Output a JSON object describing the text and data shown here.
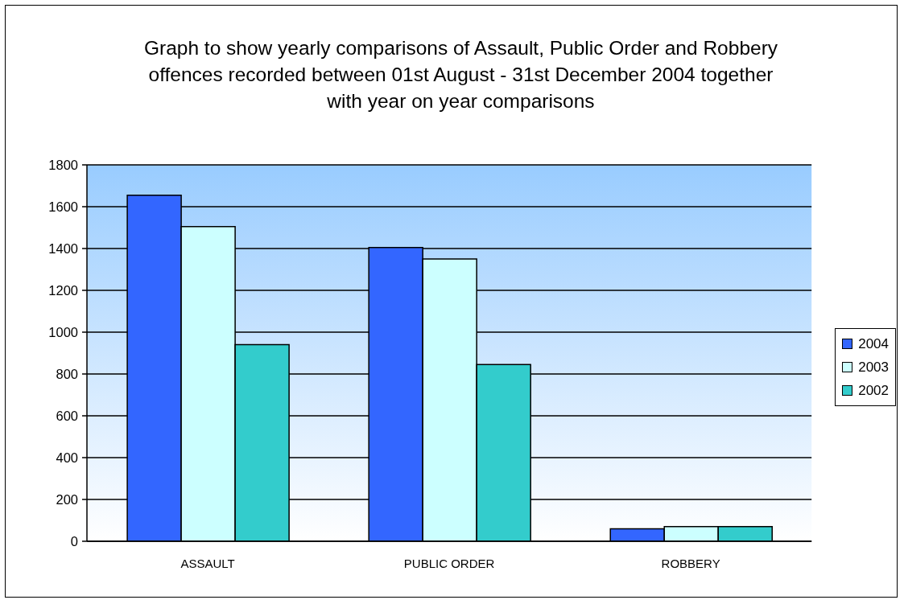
{
  "chart_data": {
    "type": "bar",
    "title": "Graph to show yearly comparisons of Assault, Public Order and Robbery offences recorded between 01st August - 31st December 2004 together with year on year comparisons",
    "categories": [
      "ASSAULT",
      "PUBLIC ORDER",
      "ROBBERY"
    ],
    "series": [
      {
        "name": "2004",
        "color": "#3366ff",
        "values": [
          1655,
          1405,
          60
        ]
      },
      {
        "name": "2003",
        "color": "#ccffff",
        "values": [
          1505,
          1350,
          70
        ]
      },
      {
        "name": "2002",
        "color": "#33cccc",
        "values": [
          940,
          845,
          70
        ]
      }
    ],
    "ylim": [
      0,
      1800
    ],
    "yticks": [
      0,
      200,
      400,
      600,
      800,
      1000,
      1200,
      1400,
      1600,
      1800
    ],
    "grid": "y",
    "legend": "right"
  }
}
